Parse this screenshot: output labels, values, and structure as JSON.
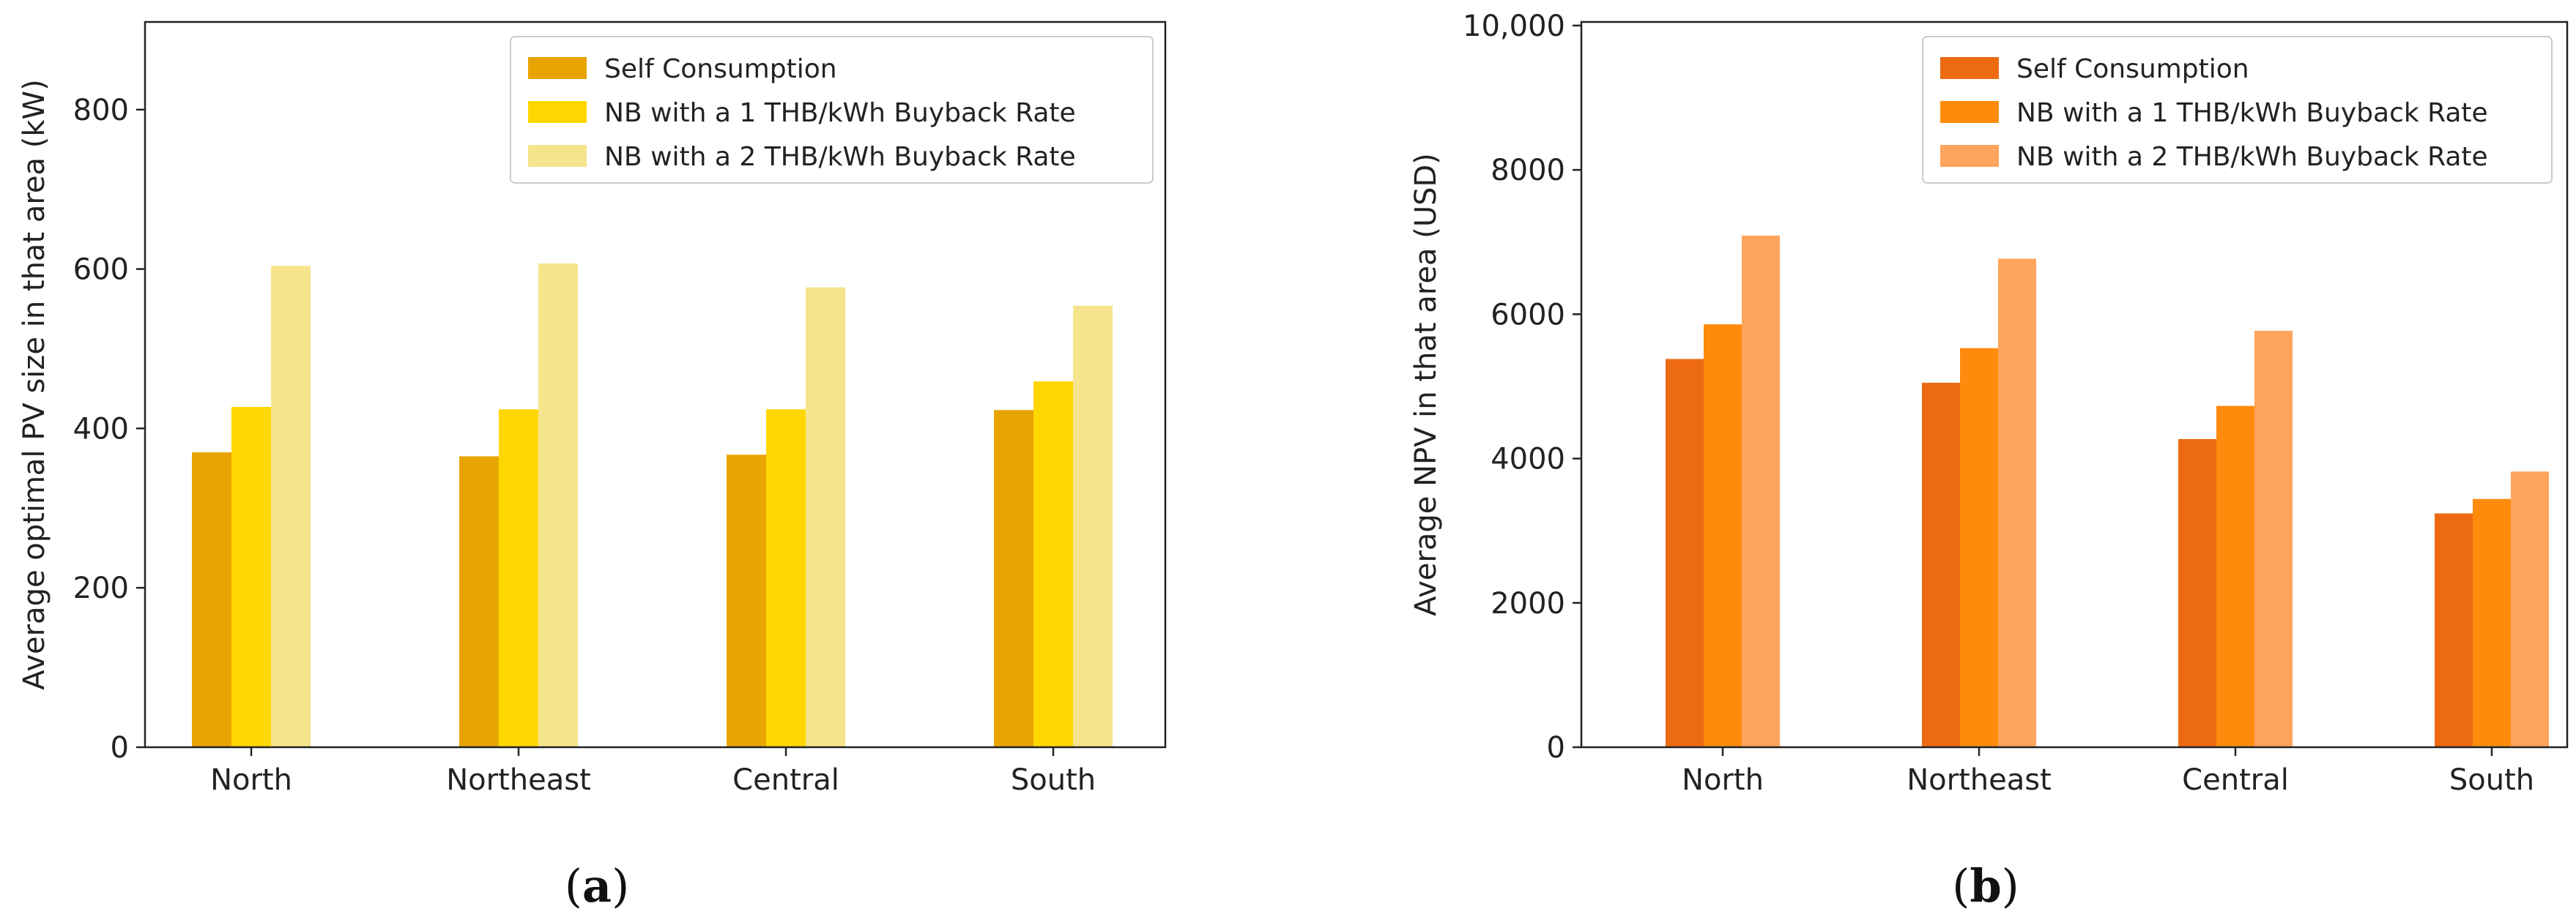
{
  "figure": {
    "panels": [
      {
        "paren_open": "(",
        "letter": "a",
        "paren_close": ")"
      },
      {
        "paren_open": "(",
        "letter": "b",
        "paren_close": ")"
      }
    ]
  },
  "chart_data": [
    {
      "type": "bar",
      "title": "",
      "xlabel": "",
      "ylabel": "Average optimal PV size in that area (kW)",
      "categories": [
        "North",
        "Northeast",
        "Central",
        "South"
      ],
      "ylim": [
        0,
        910
      ],
      "yticks": [
        0,
        200,
        400,
        600,
        800
      ],
      "ytick_labels": [
        "0",
        "200",
        "400",
        "600",
        "800"
      ],
      "legend_position": "top-right",
      "series": [
        {
          "name": "Self Consumption",
          "color": "#E8A400",
          "values": [
            370,
            365,
            367,
            423
          ]
        },
        {
          "name": "NB with a 1 THB/kWh Buyback Rate",
          "color": "#FFD700",
          "values": [
            427,
            424,
            424,
            459
          ]
        },
        {
          "name": "NB with a 2 THB/kWh Buyback Rate",
          "color": "#F5E48C",
          "values": [
            604,
            607,
            577,
            554
          ]
        }
      ]
    },
    {
      "type": "bar",
      "title": "",
      "xlabel": "",
      "ylabel": "Average NPV in that area (USD)",
      "categories": [
        "North",
        "Northeast",
        "Central",
        "South"
      ],
      "ylim": [
        0,
        10050
      ],
      "yticks": [
        0,
        2000,
        4000,
        6000,
        8000,
        10000
      ],
      "ytick_labels": [
        "0",
        "2000",
        "4000",
        "6000",
        "8000",
        "10,000"
      ],
      "legend_position": "top-right",
      "series": [
        {
          "name": "Self Consumption",
          "color": "#EC6A12",
          "values": [
            5380,
            5050,
            4270,
            3240
          ]
        },
        {
          "name": "NB with a 1 THB/kWh Buyback Rate",
          "color": "#FF8B0D",
          "values": [
            5860,
            5530,
            4730,
            3440
          ]
        },
        {
          "name": "NB with a 2 THB/kWh Buyback Rate",
          "color": "#FFA45C",
          "values": [
            7090,
            6770,
            5770,
            3820
          ]
        }
      ]
    }
  ]
}
